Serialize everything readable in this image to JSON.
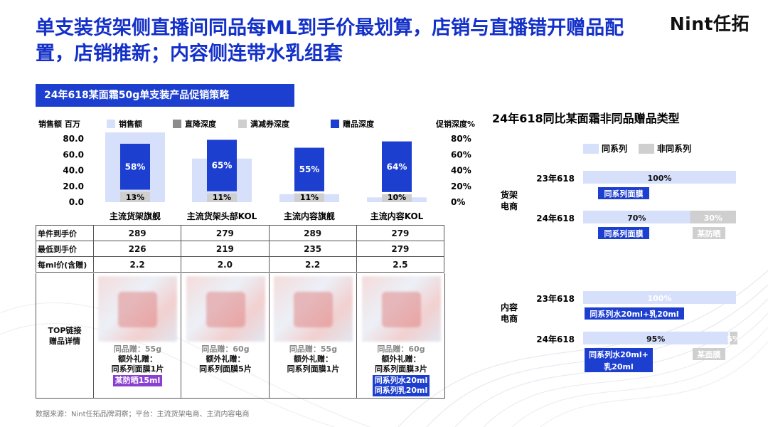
{
  "header": {
    "title": "单支装货架侧直播间同品每ML到手价最划算，店销与直播错开赠品配置，店销推新；内容侧连带水乳组套",
    "brand": "Nint任拓"
  },
  "left_banner": "24年618某面霜50g单支装产品促销策略",
  "table": {
    "rows": [
      {
        "label": "单件到手价",
        "values": [
          "289",
          "279",
          "289",
          "279"
        ]
      },
      {
        "label": "最低到手价",
        "values": [
          "226",
          "219",
          "235",
          "279"
        ]
      },
      {
        "label": "每ml价(含赠)",
        "values": [
          "2.2",
          "2.0",
          "2.2",
          "2.5"
        ]
      }
    ],
    "top_label": "TOP链接\n赠品详情",
    "products": [
      {
        "same": "同品赠：55g",
        "extra": "额外礼赠：\n同系列面膜1片",
        "highlight": "某防晒15ml",
        "hl_color": "purple"
      },
      {
        "same": "同品赠：60g",
        "extra": "额外礼赠：\n同系列面膜5片",
        "highlight": "",
        "hl_color": ""
      },
      {
        "same": "同品赠：55g",
        "extra": "额外礼赠：\n同系列面膜1片",
        "highlight": "",
        "hl_color": ""
      },
      {
        "same": "同品赠：60g",
        "extra": "额外礼赠：\n同系列面膜3片",
        "highlight": "同系列水20ml\n同系列乳20ml",
        "hl_color": "blue"
      }
    ]
  },
  "source": "数据来源：Nint任拓品牌洞察；平台：主流货架电商、主流内容电商",
  "colors": {
    "accent": "#1d3fd0",
    "light_blue": "#d6e0fb",
    "gray_dark": "#8c8c8c",
    "gray_light": "#cfcfcf"
  },
  "chart_data": [
    {
      "type": "bar",
      "title": "",
      "ylabel": "销售额 百万",
      "y2label": "促销深度%",
      "yticks": [
        "80.0",
        "60.0",
        "40.0",
        "20.0",
        "0.0"
      ],
      "y2ticks": [
        "80%",
        "60%",
        "40%",
        "20%",
        "0%"
      ],
      "ylim": [
        0,
        80
      ],
      "y2lim": [
        0,
        80
      ],
      "categories": [
        "主流货架旗舰",
        "主流货架头部KOL",
        "主流内容旗舰",
        "主流内容KOL"
      ],
      "legend": [
        "销售额",
        "直降深度",
        "满减券深度",
        "赠品深度"
      ],
      "legend_position": "top",
      "series": [
        {
          "name": "销售额",
          "values": [
            88,
            55,
            10,
            6
          ]
        },
        {
          "name": "直降深度",
          "values": [
            5,
            5,
            0,
            0
          ]
        },
        {
          "name": "满减券深度",
          "values": [
            13,
            11,
            11,
            10
          ]
        },
        {
          "name": "赠品深度",
          "values": [
            58,
            65,
            55,
            64
          ]
        }
      ],
      "data_labels": {
        "满减券深度": [
          "13%",
          "11%",
          "11%",
          "10%"
        ],
        "赠品深度": [
          "58%",
          "65%",
          "55%",
          "64%"
        ]
      }
    },
    {
      "type": "bar",
      "title": "24年618同比某面霜非同品赠品类型",
      "orientation": "horizontal-stacked",
      "legend": [
        "同系列",
        "非同系列"
      ],
      "legend_position": "top",
      "groups": [
        {
          "group": "货架\n电商",
          "rows": [
            {
              "year": "23年618",
              "values": [
                100,
                0
              ],
              "labels": [
                "100%",
                ""
              ],
              "notes": [
                "同系列面膜",
                ""
              ]
            },
            {
              "year": "24年618",
              "values": [
                70,
                30
              ],
              "labels": [
                "70%",
                "30%"
              ],
              "notes": [
                "同系列面膜",
                "某防晒"
              ]
            }
          ]
        },
        {
          "group": "内容\n电商",
          "rows": [
            {
              "year": "23年618",
              "values": [
                100,
                0
              ],
              "labels": [
                "100%",
                ""
              ],
              "notes": [
                "同系列水20ml+乳20ml",
                ""
              ]
            },
            {
              "year": "24年618",
              "values": [
                95,
                5
              ],
              "labels": [
                "95%",
                "5%"
              ],
              "notes": [
                "同系列水20ml+\n乳20ml",
                "某面膜"
              ]
            }
          ]
        }
      ]
    }
  ]
}
